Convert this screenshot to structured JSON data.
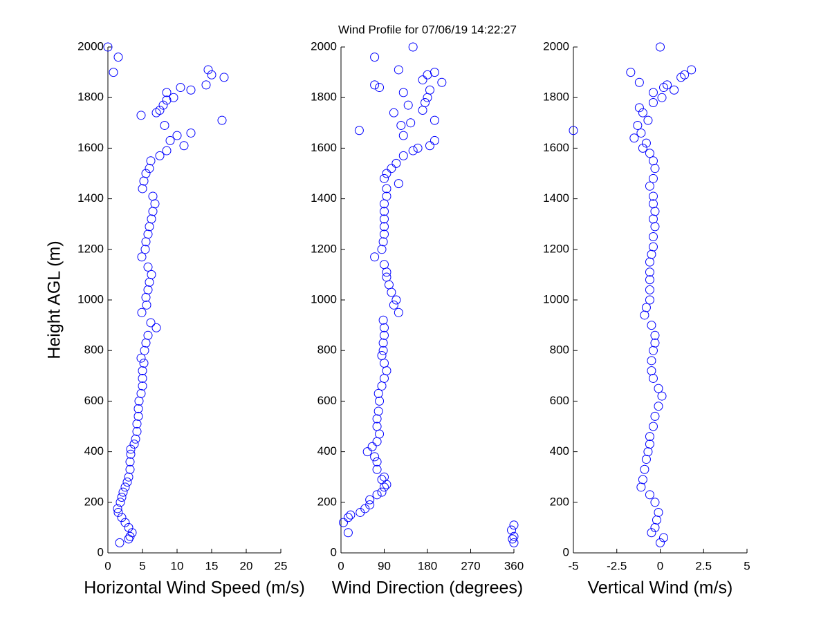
{
  "chart_data": [
    {
      "type": "scatter",
      "title": "Wind Profile for  07/06/19 14:22:27",
      "xlabel": "Horizontal Wind Speed (m/s)",
      "ylabel": "Height AGL (m)",
      "color": "#0000ff",
      "xlim": [
        0,
        25
      ],
      "xticks": [
        0,
        5,
        10,
        15,
        20,
        25
      ],
      "ylim": [
        0,
        2000
      ],
      "yticks": [
        0,
        200,
        400,
        600,
        800,
        1000,
        1200,
        1400,
        1600,
        1800,
        2000
      ],
      "x": [
        1.7,
        3.0,
        3.2,
        3.5,
        3.0,
        2.5,
        2.0,
        1.5,
        1.4,
        1.8,
        2.0,
        2.2,
        2.5,
        2.8,
        3.0,
        3.2,
        3.2,
        3.3,
        3.3,
        3.8,
        4.0,
        4.2,
        4.2,
        4.4,
        4.4,
        4.5,
        4.8,
        5.0,
        5.0,
        5.0,
        5.2,
        4.8,
        5.3,
        5.5,
        5.8,
        7.0,
        6.2,
        4.9,
        5.6,
        5.5,
        5.8,
        6.0,
        6.3,
        5.8,
        4.9,
        5.4,
        5.5,
        5.8,
        6.0,
        6.3,
        6.5,
        6.8,
        6.5,
        5.0,
        5.2,
        5.5,
        6.0,
        6.2,
        7.5,
        8.5,
        11.0,
        9.0,
        10.0,
        12.0,
        8.2,
        16.5,
        4.8,
        7.0,
        7.5,
        8.0,
        8.5,
        9.5,
        8.5,
        12.0,
        10.5,
        14.2,
        16.8,
        15.0,
        0.8,
        14.5,
        1.5,
        0
      ],
      "y": [
        40,
        55,
        65,
        80,
        100,
        120,
        140,
        160,
        175,
        200,
        220,
        240,
        260,
        280,
        300,
        330,
        360,
        390,
        410,
        430,
        450,
        480,
        510,
        540,
        570,
        600,
        630,
        660,
        690,
        720,
        750,
        770,
        800,
        830,
        860,
        890,
        910,
        950,
        980,
        1010,
        1040,
        1070,
        1100,
        1130,
        1170,
        1200,
        1230,
        1260,
        1290,
        1320,
        1350,
        1380,
        1410,
        1440,
        1470,
        1500,
        1520,
        1550,
        1570,
        1590,
        1610,
        1630,
        1650,
        1660,
        1690,
        1710,
        1730,
        1740,
        1750,
        1770,
        1790,
        1800,
        1820,
        1830,
        1840,
        1850,
        1880,
        1890,
        1900,
        1910,
        1960,
        2000
      ]
    },
    {
      "type": "scatter",
      "xlabel": "Wind Direction (degrees)",
      "color": "#0000ff",
      "xlim": [
        0,
        360
      ],
      "xticks": [
        0,
        90,
        180,
        270,
        360
      ],
      "ylim": [
        0,
        2000
      ],
      "yticks": [
        0,
        200,
        400,
        600,
        800,
        1000,
        1200,
        1400,
        1600,
        1800,
        2000
      ],
      "x": [
        360,
        357,
        360,
        15,
        355,
        360,
        5,
        15,
        20,
        40,
        50,
        60,
        60,
        75,
        85,
        90,
        95,
        85,
        90,
        75,
        75,
        70,
        55,
        65,
        75,
        80,
        75,
        75,
        78,
        80,
        78,
        85,
        90,
        95,
        90,
        85,
        88,
        88,
        90,
        90,
        88,
        120,
        110,
        115,
        105,
        100,
        95,
        95,
        90,
        70,
        85,
        88,
        90,
        90,
        90,
        90,
        90,
        95,
        95,
        120,
        90,
        95,
        105,
        115,
        130,
        150,
        160,
        185,
        195,
        130,
        38,
        125,
        145,
        195,
        110,
        170,
        140,
        175,
        180,
        130,
        185,
        80,
        70,
        210,
        170,
        180,
        195,
        120,
        70,
        150
      ],
      "y": [
        40,
        55,
        65,
        80,
        90,
        110,
        120,
        140,
        150,
        160,
        175,
        190,
        210,
        230,
        240,
        260,
        270,
        290,
        300,
        330,
        360,
        380,
        400,
        420,
        440,
        470,
        500,
        530,
        560,
        600,
        630,
        660,
        690,
        720,
        750,
        780,
        800,
        830,
        860,
        890,
        920,
        950,
        980,
        1000,
        1030,
        1060,
        1090,
        1110,
        1140,
        1170,
        1200,
        1230,
        1260,
        1290,
        1320,
        1350,
        1380,
        1410,
        1440,
        1460,
        1480,
        1500,
        1520,
        1540,
        1570,
        1590,
        1600,
        1610,
        1630,
        1650,
        1670,
        1690,
        1700,
        1710,
        1740,
        1750,
        1770,
        1780,
        1800,
        1820,
        1830,
        1840,
        1850,
        1860,
        1870,
        1890,
        1900,
        1910,
        1960,
        2000
      ]
    },
    {
      "type": "scatter",
      "xlabel": "Vertical Wind (m/s)",
      "color": "#0000ff",
      "xlim": [
        -5,
        5
      ],
      "xticks": [
        -5,
        -2.5,
        0,
        2.5,
        5
      ],
      "ylim": [
        0,
        2000
      ],
      "yticks": [
        0,
        200,
        400,
        600,
        800,
        1000,
        1200,
        1400,
        1600,
        1800,
        2000
      ],
      "x": [
        0,
        0.2,
        -0.5,
        -0.3,
        -0.2,
        -0.1,
        -0.3,
        -0.6,
        -1.1,
        -1.0,
        -0.9,
        -0.8,
        -0.7,
        -0.6,
        -0.6,
        -0.4,
        -0.3,
        -0.1,
        0.1,
        -0.1,
        -0.4,
        -0.5,
        -0.5,
        -0.4,
        -0.3,
        -0.3,
        -0.5,
        -0.9,
        -0.8,
        -0.6,
        -0.6,
        -0.6,
        -0.6,
        -0.6,
        -0.5,
        -0.4,
        -0.4,
        -0.3,
        -0.4,
        -0.3,
        -0.4,
        -0.4,
        -0.6,
        -0.4,
        -0.3,
        -0.4,
        -0.6,
        -1.0,
        -0.8,
        -1.5,
        -1.1,
        -5.0,
        -1.3,
        -0.7,
        -1.0,
        -1.2,
        -0.4,
        0.1,
        -0.4,
        0.8,
        0.2,
        0.4,
        -1.2,
        1.2,
        1.4,
        -1.7,
        1.8,
        0
      ],
      "y": [
        40,
        60,
        80,
        100,
        130,
        160,
        200,
        230,
        260,
        290,
        330,
        370,
        400,
        430,
        460,
        500,
        540,
        580,
        620,
        650,
        690,
        720,
        760,
        800,
        830,
        860,
        900,
        940,
        970,
        1000,
        1040,
        1080,
        1110,
        1150,
        1180,
        1210,
        1250,
        1290,
        1320,
        1350,
        1380,
        1410,
        1450,
        1480,
        1520,
        1550,
        1580,
        1600,
        1620,
        1640,
        1660,
        1670,
        1690,
        1710,
        1740,
        1760,
        1780,
        1800,
        1820,
        1830,
        1840,
        1850,
        1860,
        1880,
        1890,
        1900,
        1910,
        2000
      ]
    }
  ]
}
